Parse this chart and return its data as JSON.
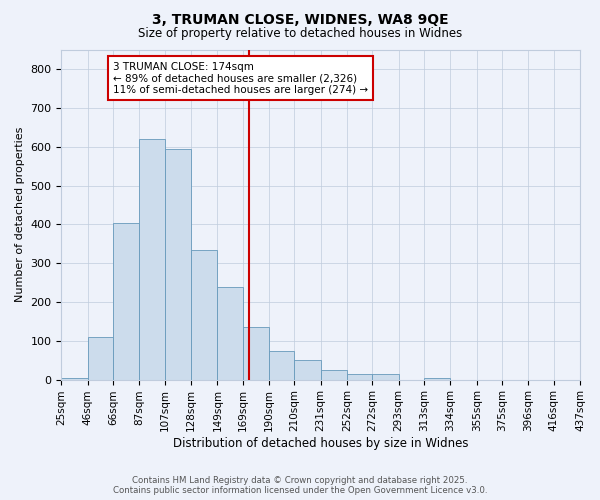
{
  "title": "3, TRUMAN CLOSE, WIDNES, WA8 9QE",
  "subtitle": "Size of property relative to detached houses in Widnes",
  "xlabel": "Distribution of detached houses by size in Widnes",
  "ylabel": "Number of detached properties",
  "bin_labels": [
    "25sqm",
    "46sqm",
    "66sqm",
    "87sqm",
    "107sqm",
    "128sqm",
    "149sqm",
    "169sqm",
    "190sqm",
    "210sqm",
    "231sqm",
    "252sqm",
    "272sqm",
    "293sqm",
    "313sqm",
    "334sqm",
    "355sqm",
    "375sqm",
    "396sqm",
    "416sqm",
    "437sqm"
  ],
  "bin_edges": [
    25,
    46,
    66,
    87,
    107,
    128,
    149,
    169,
    190,
    210,
    231,
    252,
    272,
    293,
    313,
    334,
    355,
    375,
    396,
    416,
    437
  ],
  "heights": [
    5,
    110,
    405,
    620,
    595,
    335,
    240,
    135,
    75,
    50,
    25,
    15,
    15,
    0,
    5,
    0,
    0,
    0,
    0,
    0
  ],
  "property_size": 174,
  "vline_x": 174,
  "annotation_text": "3 TRUMAN CLOSE: 174sqm\n← 89% of detached houses are smaller (2,326)\n11% of semi-detached houses are larger (274) →",
  "bar_color": "#ccdcec",
  "bar_edge_color": "#6699bb",
  "vline_color": "#cc0000",
  "annotation_box_edge_color": "#cc0000",
  "background_color": "#eef2fa",
  "grid_color": "#c0ccdd",
  "ylim": [
    0,
    850
  ],
  "yticks": [
    0,
    100,
    200,
    300,
    400,
    500,
    600,
    700,
    800
  ],
  "footer_line1": "Contains HM Land Registry data © Crown copyright and database right 2025.",
  "footer_line2": "Contains public sector information licensed under the Open Government Licence v3.0."
}
